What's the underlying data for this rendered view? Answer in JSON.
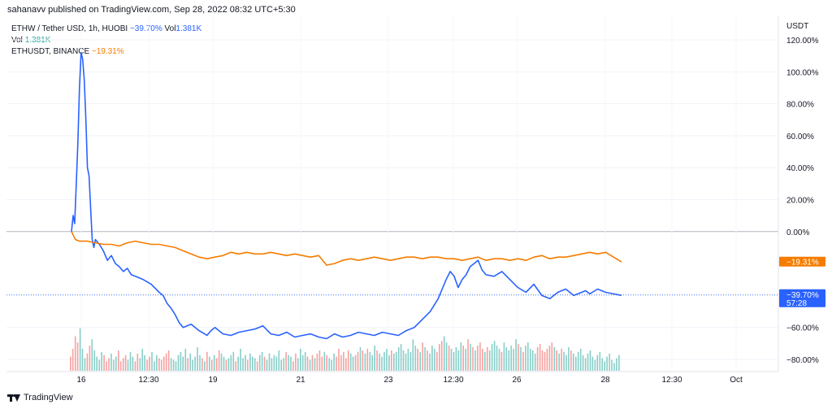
{
  "header": {
    "published": "sahanavv published on TradingView.com, Sep 28, 2022 08:32 UTC+5:30"
  },
  "legend": {
    "row1_label": "ETHW / Tether USD, 1h, HUOBI",
    "row1_change": "−39.70%",
    "row1_vol_label": "Vol",
    "row1_vol_value": "1.381K",
    "row2_label": "Vol",
    "row2_value": "1.381K",
    "row3_label": "ETHUSDT, BINANCE",
    "row3_change": "−19.31%"
  },
  "footer": {
    "brand": "TradingView"
  },
  "colors": {
    "ethw": "#2962ff",
    "ethusdt": "#f57c00",
    "vol_up": "#26a69a",
    "vol_down": "#ef5350"
  },
  "chart_data": {
    "type": "line",
    "yaxis_unit": "USDT",
    "ylim": [
      -84,
      124
    ],
    "y_ticks": [
      "120.00%",
      "100.00%",
      "80.00%",
      "60.00%",
      "40.00%",
      "20.00%",
      "0.00%",
      "−60.00%",
      "−80.00%"
    ],
    "x_ticks": [
      "16",
      "12:30",
      "19",
      "21",
      "23",
      "12:30",
      "26",
      "28",
      "12:30",
      "Oct"
    ],
    "x_range": [
      0,
      900
    ],
    "price_labels": [
      {
        "series": "ethusdt",
        "text": "−19.31%",
        "value": -19.31
      },
      {
        "series": "ethw",
        "text": "−39.70%",
        "sub": "57:28",
        "value": -39.7
      }
    ],
    "series": [
      {
        "key": "ethw",
        "name": "ETHW / Tether USD, 1h, HUOBI",
        "x": [
          0,
          2,
          4,
          6,
          8,
          10,
          12,
          14,
          16,
          18,
          20,
          22,
          24,
          26,
          28,
          30,
          35,
          40,
          45,
          50,
          55,
          60,
          65,
          70,
          75,
          80,
          90,
          100,
          110,
          115,
          120,
          125,
          130,
          135,
          140,
          150,
          160,
          170,
          175,
          180,
          190,
          200,
          210,
          220,
          230,
          240,
          250,
          260,
          270,
          280,
          290,
          300,
          310,
          320,
          330,
          340,
          350,
          360,
          370,
          380,
          390,
          400,
          410,
          420,
          430,
          440,
          450,
          460,
          470,
          475,
          480,
          485,
          490,
          495,
          500,
          505,
          510,
          515,
          520,
          530,
          540,
          550,
          560,
          570,
          580,
          590,
          600,
          610,
          620,
          630,
          640,
          645,
          650,
          660,
          670,
          680,
          690
        ],
        "values": [
          0,
          10,
          5,
          30,
          55,
          90,
          112,
          108,
          95,
          70,
          40,
          35,
          15,
          -5,
          -10,
          -5,
          -8,
          -12,
          -18,
          -15,
          -20,
          -22,
          -25,
          -23,
          -27,
          -28,
          -30,
          -33,
          -38,
          -40,
          -45,
          -48,
          -52,
          -57,
          -60,
          -58,
          -62,
          -65,
          -62,
          -60,
          -64,
          -65,
          -63,
          -62,
          -61,
          -59,
          -64,
          -65,
          -63,
          -66,
          -65,
          -64,
          -66,
          -67,
          -64,
          -66,
          -65,
          -63,
          -64,
          -65,
          -63,
          -64,
          -65,
          -62,
          -60,
          -55,
          -50,
          -42,
          -30,
          -25,
          -28,
          -35,
          -30,
          -27,
          -22,
          -20,
          -18,
          -24,
          -27,
          -28,
          -25,
          -30,
          -35,
          -38,
          -33,
          -40,
          -42,
          -38,
          -36,
          -40,
          -38,
          -37,
          -39,
          -36,
          -38,
          -39,
          -40
        ]
      },
      {
        "key": "ethusdt",
        "name": "ETHUSDT, BINANCE",
        "x": [
          0,
          5,
          10,
          20,
          30,
          40,
          50,
          60,
          70,
          80,
          90,
          100,
          110,
          120,
          130,
          140,
          150,
          160,
          170,
          180,
          190,
          200,
          210,
          220,
          230,
          240,
          250,
          260,
          270,
          280,
          290,
          300,
          310,
          320,
          330,
          340,
          350,
          360,
          370,
          380,
          390,
          400,
          410,
          420,
          430,
          440,
          450,
          460,
          470,
          480,
          490,
          500,
          510,
          520,
          530,
          540,
          550,
          560,
          570,
          580,
          590,
          600,
          610,
          620,
          630,
          640,
          650,
          660,
          670,
          680,
          690
        ],
        "values": [
          0,
          -5,
          -6,
          -6,
          -7,
          -8,
          -8,
          -9,
          -7,
          -6,
          -7,
          -8,
          -8,
          -9,
          -10,
          -12,
          -14,
          -16,
          -17,
          -16,
          -15,
          -13,
          -14,
          -13,
          -14,
          -14,
          -13,
          -14,
          -15,
          -14,
          -15,
          -16,
          -15,
          -21,
          -20,
          -18,
          -17,
          -18,
          -17,
          -16,
          -17,
          -18,
          -17,
          -16,
          -16,
          -17,
          -16,
          -16,
          -17,
          -17,
          -18,
          -17,
          -16,
          -18,
          -17,
          -17,
          -18,
          -17,
          -18,
          -16,
          -15,
          -17,
          -16,
          -16,
          -15,
          -14,
          -13,
          -14,
          -13,
          -16,
          -19
        ]
      }
    ],
    "volume": [
      9,
      14,
      22,
      18,
      27,
      14,
      8,
      11,
      16,
      20,
      13,
      9,
      7,
      12,
      10,
      6,
      8,
      11,
      7,
      9,
      13,
      6,
      8,
      10,
      7,
      12,
      9,
      6,
      11,
      8,
      14,
      10,
      7,
      9,
      12,
      6,
      10,
      8,
      7,
      9,
      11,
      13,
      8,
      7,
      6,
      10,
      12,
      9,
      14,
      8,
      11,
      7,
      9,
      15,
      10,
      8,
      6,
      12,
      9,
      7,
      10,
      8,
      13,
      11,
      9,
      7,
      8,
      10,
      12,
      6,
      9,
      14,
      8,
      10,
      7,
      11,
      9,
      8,
      6,
      10,
      12,
      9,
      7,
      11,
      8,
      10,
      9,
      13,
      7,
      8,
      12,
      10,
      9,
      6,
      11,
      8,
      14,
      10,
      12,
      9,
      7,
      10,
      8,
      11,
      13,
      9,
      12,
      10,
      8,
      7,
      11,
      9,
      14,
      10,
      12,
      8,
      13,
      11,
      9,
      10,
      12,
      15,
      13,
      11,
      14,
      12,
      10,
      16,
      13,
      11,
      9,
      12,
      14,
      10,
      13,
      11,
      12,
      15,
      17,
      13,
      11,
      14,
      12,
      20,
      16,
      14,
      12,
      18,
      15,
      13,
      11,
      16,
      14,
      12,
      17,
      19,
      22,
      18,
      16,
      14,
      12,
      15,
      13,
      18,
      16,
      14,
      20,
      17,
      15,
      13,
      16,
      18,
      14,
      12,
      15,
      13,
      17,
      19,
      16,
      14,
      12,
      18,
      15,
      13,
      16,
      14,
      20,
      17,
      15,
      12,
      16,
      18,
      14,
      13,
      11,
      15,
      17,
      13,
      12,
      14,
      16,
      18,
      15,
      13,
      11,
      14,
      12,
      10,
      15,
      13,
      11,
      9,
      12,
      14,
      10,
      8,
      11,
      13,
      9,
      7,
      10,
      12,
      8,
      6,
      9,
      11,
      7,
      5,
      8,
      10
    ]
  }
}
